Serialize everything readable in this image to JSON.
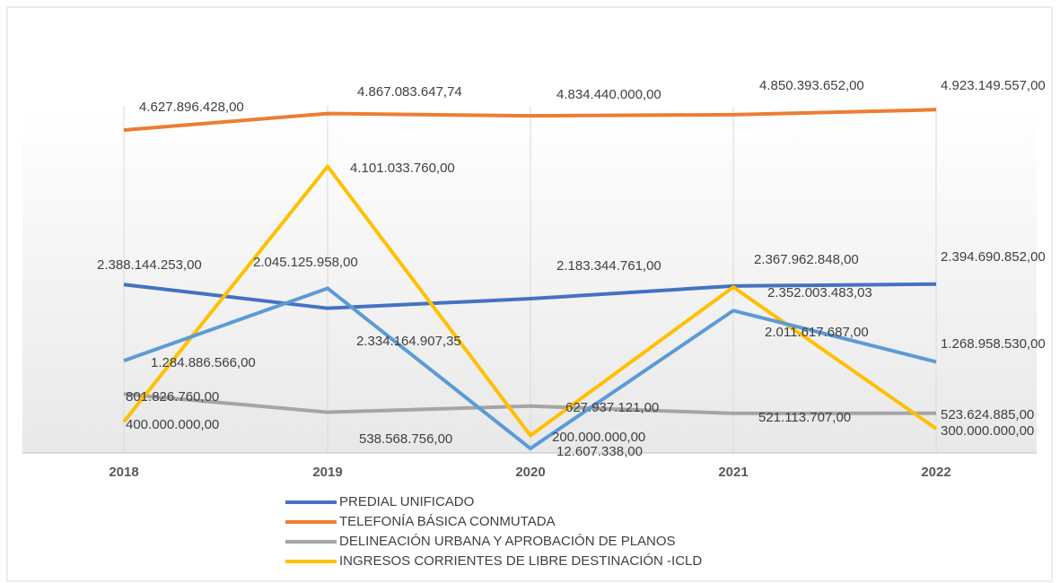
{
  "chart_data": {
    "type": "line",
    "categories": [
      "2018",
      "2019",
      "2020",
      "2021",
      "2022"
    ],
    "ylim": [
      0,
      5200000000
    ],
    "series": [
      {
        "name": "PREDIAL UNIFICADO",
        "color": "#4472c4",
        "values": [
          2388144253,
          2045125958,
          2183344761,
          2367962848,
          2394690852
        ],
        "value_labels": [
          "2.388.144.253,00",
          "2.045.125.958,00",
          "2.183.344.761,00",
          "2.367.962.848,00",
          "2.394.690.852,00"
        ]
      },
      {
        "name": "TELEFONÍA BÁSICA CONMUTADA",
        "color": "#ed7d31",
        "values": [
          4627896428,
          4867083647.74,
          4834440000,
          4850393652,
          4923149557
        ],
        "value_labels": [
          "4.627.896.428,00",
          "4.867.083.647,74",
          "4.834.440.000,00",
          "4.850.393.652,00",
          "4.923.149.557,00"
        ]
      },
      {
        "name": "DELINEACIÓN URBANA Y APROBACIÓN DE PLANOS",
        "color": "#a5a5a5",
        "values": [
          801826760,
          538568756,
          627937121,
          521113707,
          523624885
        ],
        "value_labels": [
          "801.826.760,00",
          "538.568.756,00",
          "627.937.121,00",
          "521.113.707,00",
          "523.624.885,00"
        ]
      },
      {
        "name": "INGRESOS CORRIENTES DE LIBRE DESTINACIÓN -ICLD",
        "color": "#ffc000",
        "values": [
          400000000,
          4101033760,
          200000000,
          2352003483.03,
          300000000
        ],
        "value_labels": [
          "400.000.000,00",
          "4.101.033.760,00",
          "200.000.000,00",
          "2.352.003.483,03",
          "300.000.000,00"
        ]
      },
      {
        "color": "#5b9bd5",
        "values": [
          1284886566,
          2334164907.35,
          12607338,
          2011617687,
          1268958530
        ],
        "value_labels": [
          "1.284.886.566,00",
          "2.334.164.907,35",
          "12.607.338,00",
          "2.011.617.687,00",
          "1.268.958.530,00"
        ]
      }
    ]
  }
}
